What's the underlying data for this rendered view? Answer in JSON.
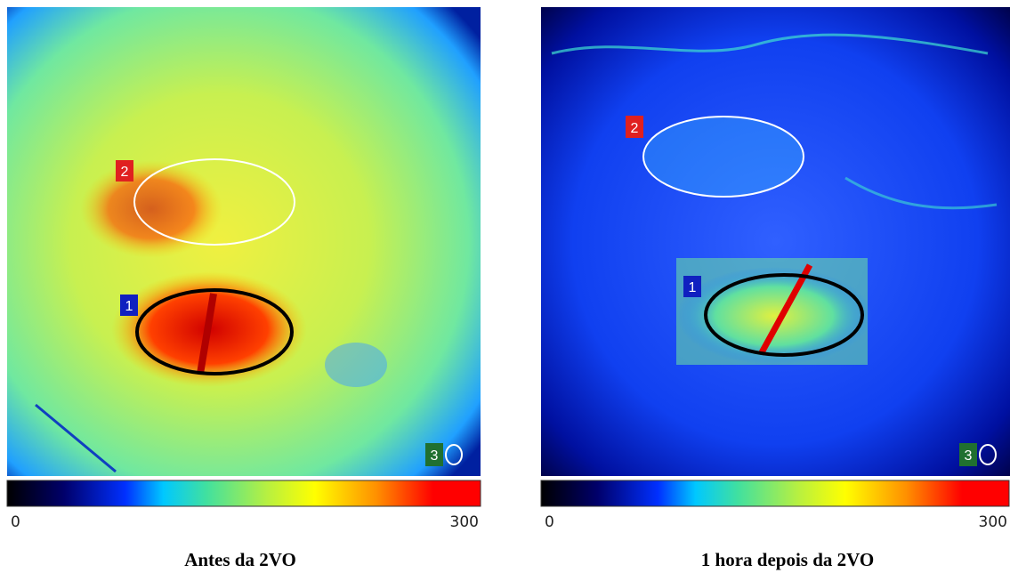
{
  "panels": [
    {
      "labels": [
        "2",
        "1",
        "3"
      ],
      "colorbar": {
        "min": 0,
        "max": 300
      },
      "caption": "Antes da 2VO"
    },
    {
      "labels": [
        "2",
        "1",
        "3"
      ],
      "colorbar": {
        "min": 0,
        "max": 300
      },
      "caption": "1 hora depois da 2VO"
    }
  ]
}
